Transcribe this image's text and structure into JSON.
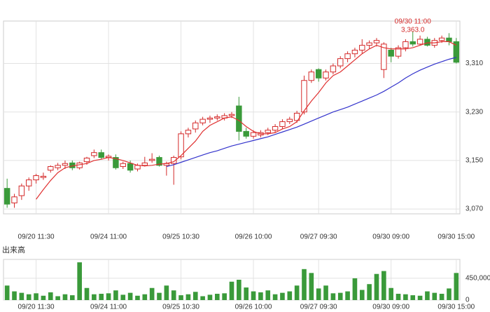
{
  "chart_data": {
    "type": "candlestick",
    "categories": [
      null,
      null,
      null,
      null,
      "09/20 11:30",
      null,
      null,
      null,
      null,
      null,
      null,
      null,
      null,
      null,
      "09/24 11:00",
      null,
      null,
      null,
      null,
      null,
      null,
      null,
      null,
      null,
      "09/25 10:30",
      null,
      null,
      null,
      null,
      null,
      null,
      null,
      null,
      null,
      "09/26 10:00",
      null,
      null,
      null,
      null,
      null,
      null,
      null,
      null,
      "09/27 09:30",
      null,
      null,
      null,
      null,
      null,
      null,
      null,
      null,
      null,
      "09/30 09:00",
      null,
      null,
      null,
      null,
      null,
      null,
      null,
      null,
      "09/30 15:00"
    ],
    "open": [
      3104,
      3080,
      3092,
      3108,
      3118,
      3122,
      3134,
      3138,
      3142,
      3146,
      3138,
      3148,
      3158,
      3163,
      3155,
      3155,
      3140,
      3145,
      3136,
      3142,
      3150,
      3155,
      3142,
      3145,
      3156,
      3194,
      3202,
      3212,
      3218,
      3220,
      3220,
      3224,
      3240,
      3198,
      3190,
      3192,
      3196,
      3200,
      3206,
      3214,
      3216,
      3230,
      3282,
      3300,
      3286,
      3296,
      3306,
      3318,
      3326,
      3332,
      3340,
      3344,
      3300,
      3332,
      3322,
      3336,
      3346,
      3342,
      3350,
      3340,
      3348,
      3352,
      3346
    ],
    "high": [
      3120,
      3095,
      3112,
      3122,
      3128,
      3130,
      3142,
      3146,
      3150,
      3150,
      3148,
      3156,
      3168,
      3168,
      3160,
      3160,
      3148,
      3150,
      3145,
      3156,
      3162,
      3158,
      3148,
      3158,
      3198,
      3204,
      3216,
      3222,
      3224,
      3226,
      3228,
      3230,
      3255,
      3204,
      3200,
      3200,
      3204,
      3210,
      3218,
      3222,
      3232,
      3290,
      3300,
      3302,
      3300,
      3310,
      3322,
      3330,
      3336,
      3350,
      3348,
      3352,
      3345,
      3336,
      3340,
      3350,
      3363,
      3356,
      3354,
      3352,
      3356,
      3360,
      3352
    ],
    "low": [
      3072,
      3072,
      3085,
      3100,
      3112,
      3118,
      3130,
      3134,
      3136,
      3134,
      3135,
      3143,
      3154,
      3152,
      3150,
      3135,
      3136,
      3130,
      3132,
      3140,
      3146,
      3140,
      3125,
      3110,
      3152,
      3188,
      3196,
      3208,
      3212,
      3216,
      3216,
      3220,
      3183,
      3186,
      3186,
      3188,
      3192,
      3196,
      3202,
      3210,
      3212,
      3226,
      3278,
      3280,
      3282,
      3292,
      3302,
      3312,
      3320,
      3326,
      3334,
      3338,
      3286,
      3312,
      3318,
      3330,
      3338,
      3340,
      3338,
      3336,
      3344,
      3340,
      3310
    ],
    "close": [
      3078,
      3090,
      3108,
      3118,
      3125,
      3124,
      3140,
      3142,
      3145,
      3138,
      3146,
      3154,
      3163,
      3155,
      3157,
      3138,
      3145,
      3134,
      3142,
      3146,
      3152,
      3142,
      3145,
      3155,
      3194,
      3200,
      3212,
      3218,
      3220,
      3222,
      3224,
      3226,
      3198,
      3190,
      3196,
      3196,
      3200,
      3206,
      3214,
      3218,
      3228,
      3282,
      3296,
      3286,
      3296,
      3306,
      3318,
      3326,
      3332,
      3340,
      3344,
      3348,
      3342,
      3322,
      3336,
      3346,
      3342,
      3350,
      3340,
      3348,
      3352,
      3346,
      3312
    ],
    "up_color": "#d42a2a",
    "down_color": "#3a9a3a",
    "lines": [
      {
        "color": "#e03030",
        "values": [
          null,
          null,
          null,
          null,
          3086,
          3102,
          3117,
          3130,
          3138,
          3141,
          3143,
          3145,
          3150,
          3152,
          3155,
          3153,
          3150,
          3146,
          3142,
          3141,
          3142,
          3144,
          3145,
          3148,
          3158,
          3170,
          3182,
          3198,
          3208,
          3214,
          3220,
          3222,
          3216,
          3206,
          3198,
          3194,
          3194,
          3196,
          3202,
          3206,
          3214,
          3232,
          3248,
          3262,
          3278,
          3290,
          3296,
          3306,
          3316,
          3326,
          3334,
          3340,
          3336,
          3334,
          3334,
          3334,
          3336,
          3340,
          3344,
          3344,
          3346,
          3346,
          3340
        ]
      },
      {
        "color": "#3333cc",
        "values": [
          null,
          null,
          null,
          null,
          null,
          null,
          null,
          null,
          null,
          null,
          null,
          null,
          null,
          null,
          null,
          null,
          null,
          null,
          null,
          null,
          null,
          null,
          3140,
          3143,
          3147,
          3151,
          3155,
          3159,
          3163,
          3166,
          3170,
          3174,
          3177,
          3180,
          3183,
          3186,
          3189,
          3193,
          3197,
          3201,
          3205,
          3210,
          3215,
          3220,
          3225,
          3230,
          3234,
          3238,
          3243,
          3248,
          3253,
          3258,
          3264,
          3271,
          3278,
          3286,
          3293,
          3299,
          3304,
          3309,
          3313,
          3317,
          3320
        ]
      }
    ],
    "ylim": [
      3062,
      3380
    ],
    "yticks": [
      {
        "value": 3070,
        "label": "3,070"
      },
      {
        "value": 3150,
        "label": "3,150"
      },
      {
        "value": 3230,
        "label": "3,230"
      },
      {
        "value": 3310,
        "label": "3,310"
      }
    ],
    "annotation": {
      "text": "09/30 11:00",
      "value": {
        "value": 3363.0,
        "label": "3,363.0"
      }
    },
    "volume": {
      "title": "出来高",
      "color": "#3a9a3a",
      "values": [
        300000,
        180000,
        150000,
        120000,
        140000,
        90000,
        160000,
        80000,
        120000,
        100000,
        780000,
        250000,
        120000,
        130000,
        140000,
        200000,
        110000,
        150000,
        90000,
        120000,
        250000,
        150000,
        300000,
        200000,
        100000,
        120000,
        170000,
        80000,
        110000,
        130000,
        140000,
        380000,
        420000,
        260000,
        180000,
        160000,
        200000,
        120000,
        150000,
        180000,
        300000,
        640000,
        560000,
        240000,
        300000,
        140000,
        150000,
        180000,
        450000,
        210000,
        330000,
        540000,
        600000,
        250000,
        130000,
        120000,
        100000,
        90000,
        180000,
        150000,
        130000,
        240000,
        560000
      ],
      "ylim": [
        0,
        840000
      ],
      "yticks": [
        0,
        {
          "value": 450000,
          "label": "450,000"
        }
      ]
    }
  }
}
